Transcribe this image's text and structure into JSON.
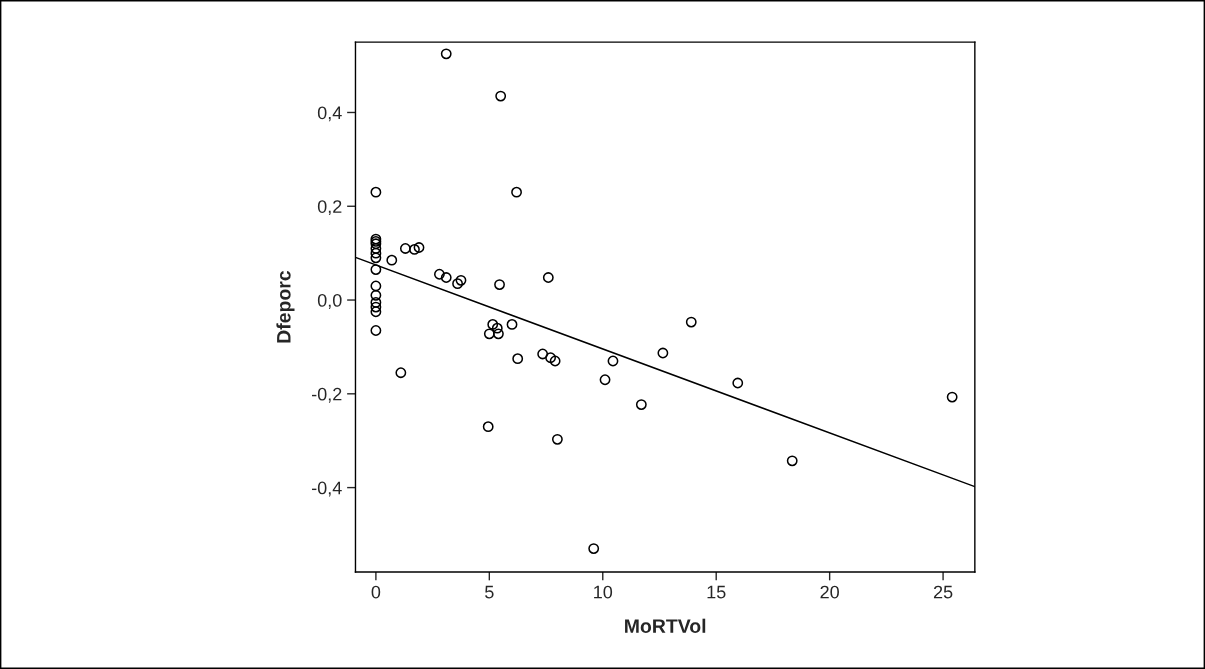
{
  "chart_data": {
    "type": "scatter",
    "xlabel": "MoRTVol",
    "ylabel": "Dfeporc",
    "grid": false,
    "legend": false,
    "xlim": [
      -0.9,
      26.4
    ],
    "ylim": [
      -0.58,
      0.55
    ],
    "xticks": [
      0,
      5,
      10,
      15,
      20,
      25
    ],
    "yticks": [
      {
        "value": -0.4,
        "label": "-0,4"
      },
      {
        "value": -0.2,
        "label": "-0,2"
      },
      {
        "value": 0.0,
        "label": "0,0"
      },
      {
        "value": 0.2,
        "label": "0,2"
      },
      {
        "value": 0.4,
        "label": "0,4"
      }
    ],
    "series": [
      {
        "marker": "circle",
        "color": "#000000",
        "x": [
          0,
          0,
          0,
          0,
          0,
          0,
          0,
          0,
          0,
          0,
          0,
          0,
          0,
          0,
          0.7,
          1.3,
          1.7,
          1.9,
          1.1,
          2.8,
          3.1,
          3.1,
          3.6,
          3.75,
          5.5,
          6.2,
          5.45,
          7.6,
          5.0,
          5.15,
          5.35,
          5.4,
          6.0,
          6.25,
          4.95,
          7.35,
          7.7,
          7.9,
          8.0,
          10.1,
          10.45,
          9.6,
          11.7,
          12.65,
          13.9,
          15.95,
          18.35,
          25.4
        ],
        "values": [
          0.23,
          0.13,
          0.125,
          0.12,
          0.11,
          0.1,
          0.09,
          0.065,
          0.03,
          0.01,
          -0.005,
          -0.015,
          -0.025,
          -0.065,
          0.085,
          0.11,
          0.108,
          0.112,
          -0.155,
          0.055,
          0.048,
          0.525,
          0.035,
          0.042,
          0.435,
          0.23,
          0.033,
          0.048,
          -0.072,
          -0.052,
          -0.06,
          -0.072,
          -0.052,
          -0.125,
          -0.27,
          -0.115,
          -0.123,
          -0.13,
          -0.297,
          -0.17,
          -0.13,
          -0.53,
          -0.223,
          -0.113,
          -0.047,
          -0.177,
          -0.343,
          -0.207
        ]
      },
      {
        "type": "line",
        "color": "#000000",
        "x": [
          -0.9,
          26.4
        ],
        "values": [
          0.091,
          -0.398
        ]
      }
    ]
  }
}
